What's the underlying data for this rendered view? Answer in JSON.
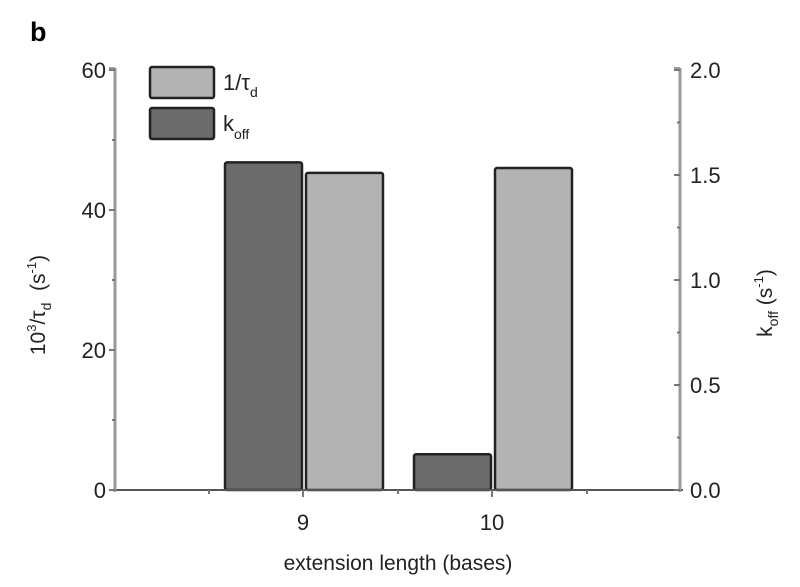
{
  "panel_label": "b",
  "colors": {
    "inv_tau_d_fill": "#b3b3b3",
    "k_off_fill": "#6b6b6b",
    "bar_stroke": "#222222",
    "axis": "#999999",
    "text": "#222222"
  },
  "legend": {
    "items": [
      {
        "label_main": "1/τ",
        "label_sub": "d",
        "series": "inv_tau_d"
      },
      {
        "label_main": "k",
        "label_sub": "off",
        "series": "k_off"
      }
    ]
  },
  "axes": {
    "x": {
      "label": "extension length (bases)",
      "ticks": [
        "9",
        "10"
      ]
    },
    "y_left": {
      "label_prefix": "10",
      "label_sup": "3",
      "label_mid": "/τ",
      "label_sub": "d",
      "label_units_open": "  (s",
      "label_units_sup": "-1",
      "label_units_close": ")",
      "ticks": [
        "0",
        "20",
        "40",
        "60"
      ]
    },
    "y_right": {
      "label_main": "k",
      "label_sub": "off",
      "label_units_open": " (s",
      "label_units_sup": "-1",
      "label_units_close": ")",
      "ticks": [
        "0.0",
        "0.5",
        "1.0",
        "1.5",
        "2.0"
      ]
    }
  },
  "chart_data": {
    "type": "bar",
    "title": "",
    "panel": "b",
    "xlabel": "extension length (bases)",
    "categories": [
      "9",
      "10"
    ],
    "series": [
      {
        "name": "k_off",
        "axis": "right",
        "unit": "s^-1",
        "color": "#6b6b6b",
        "values": [
          1.56,
          0.17
        ]
      },
      {
        "name": "1/τ_d",
        "axis": "left",
        "unit": "10^3/τ_d (s^-1)",
        "color": "#b3b3b3",
        "values": [
          45.3,
          46.0
        ]
      }
    ],
    "ylabel_left": "10^3/τ_d (s^-1)",
    "ylim_left": [
      0,
      60
    ],
    "yticks_left": [
      0,
      20,
      40,
      60
    ],
    "ylabel_right": "k_off (s^-1)",
    "ylim_right": [
      0,
      2.0
    ],
    "yticks_right": [
      0.0,
      0.5,
      1.0,
      1.5,
      2.0
    ],
    "grid": false,
    "legend_position": "upper left"
  }
}
